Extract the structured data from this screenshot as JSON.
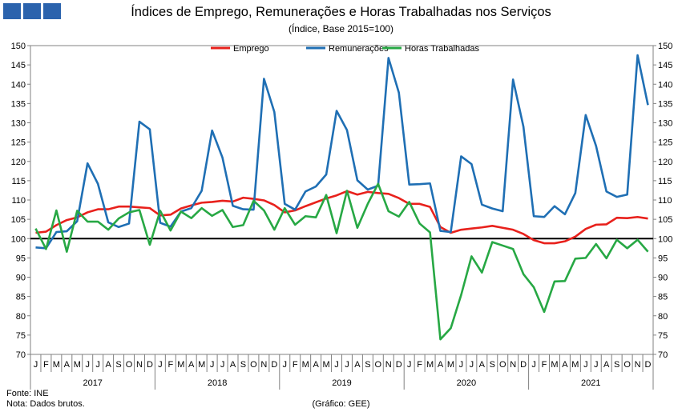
{
  "header": {
    "title": "Índices de Emprego, Remunerações e Horas Trabalhadas nos Serviços",
    "subtitle": "(Índice, Base 2015=100)"
  },
  "footer": {
    "source": "Fonte: INE",
    "note": "Nota: Dados brutos.",
    "credit": "(Gráfico: GEE)"
  },
  "colors": {
    "logo": "#2b63ad",
    "emprego": "#e8211c",
    "remuneracoes": "#1f6fb4",
    "horas": "#27a844",
    "baseline": "#000000"
  },
  "chart_data": {
    "type": "line",
    "title": "Índices de Emprego, Remunerações e Horas Trabalhadas nos Serviços",
    "subtitle": "(Índice, Base 2015=100)",
    "ylim": [
      70,
      150
    ],
    "y_ticks": [
      70,
      75,
      80,
      85,
      90,
      95,
      100,
      105,
      110,
      115,
      120,
      125,
      130,
      135,
      140,
      145,
      150
    ],
    "secondary_y_axis": true,
    "reference_line": 100,
    "legend_position": "top",
    "month_labels": [
      "J",
      "F",
      "M",
      "A",
      "M",
      "J",
      "J",
      "A",
      "S",
      "O",
      "N",
      "D"
    ],
    "years": [
      "2017",
      "2018",
      "2019",
      "2020",
      "2021"
    ],
    "series": [
      {
        "name": "Emprego",
        "color": "#e8211c",
        "values": [
          101.5,
          101.8,
          103.5,
          104.8,
          105.5,
          106.8,
          107.6,
          107.6,
          108.3,
          108.3,
          108.1,
          107.9,
          106.0,
          106.2,
          107.8,
          108.6,
          109.3,
          109.5,
          109.8,
          109.6,
          110.6,
          110.3,
          109.9,
          108.7,
          106.8,
          107.3,
          108.4,
          109.4,
          110.4,
          111.2,
          112.3,
          111.4,
          112.1,
          111.8,
          111.6,
          110.5,
          109.0,
          109.0,
          108.2,
          103.0,
          101.5,
          102.3,
          102.6,
          102.9,
          103.3,
          102.8,
          102.3,
          101.2,
          99.6,
          98.8,
          98.8,
          99.3,
          100.5,
          102.5,
          103.6,
          103.7,
          105.4,
          105.3,
          105.6,
          105.2
        ]
      },
      {
        "name": "Remunerações",
        "color": "#1f6fb4",
        "values": [
          97.7,
          97.5,
          101.7,
          101.9,
          104.5,
          119.5,
          114.2,
          104.2,
          103.0,
          103.9,
          130.3,
          128.3,
          104.1,
          103.1,
          107.0,
          107.9,
          112.4,
          128.0,
          121.0,
          108.5,
          107.6,
          107.5,
          141.4,
          132.8,
          109.0,
          107.5,
          112.2,
          113.5,
          116.6,
          133.1,
          128.1,
          115.1,
          112.7,
          113.7,
          146.8,
          137.8,
          114.0,
          114.1,
          114.3,
          102.0,
          101.7,
          121.3,
          119.3,
          108.8,
          107.8,
          107.1,
          141.2,
          129.0,
          105.8,
          105.6,
          108.4,
          106.3,
          111.8,
          132.0,
          124.0,
          112.2,
          110.8,
          111.4,
          147.5,
          134.6
        ]
      },
      {
        "name": "Horas Trabalhadas",
        "color": "#27a844",
        "values": [
          102.6,
          97.3,
          107.3,
          96.6,
          107.2,
          104.4,
          104.4,
          102.3,
          105.2,
          106.8,
          107.4,
          98.4,
          107.2,
          102.1,
          107.0,
          105.3,
          107.9,
          105.9,
          107.4,
          103.0,
          103.5,
          109.8,
          107.3,
          102.3,
          107.9,
          103.6,
          105.8,
          105.5,
          111.3,
          101.4,
          112.4,
          102.8,
          109.0,
          114.2,
          107.1,
          105.7,
          109.5,
          103.9,
          101.6,
          73.9,
          76.8,
          85.4,
          95.4,
          91.2,
          99.1,
          98.2,
          97.3,
          90.8,
          87.4,
          81.0,
          88.9,
          89.0,
          94.8,
          95.0,
          98.6,
          94.9,
          99.7,
          97.5,
          99.7,
          96.6
        ]
      }
    ]
  }
}
